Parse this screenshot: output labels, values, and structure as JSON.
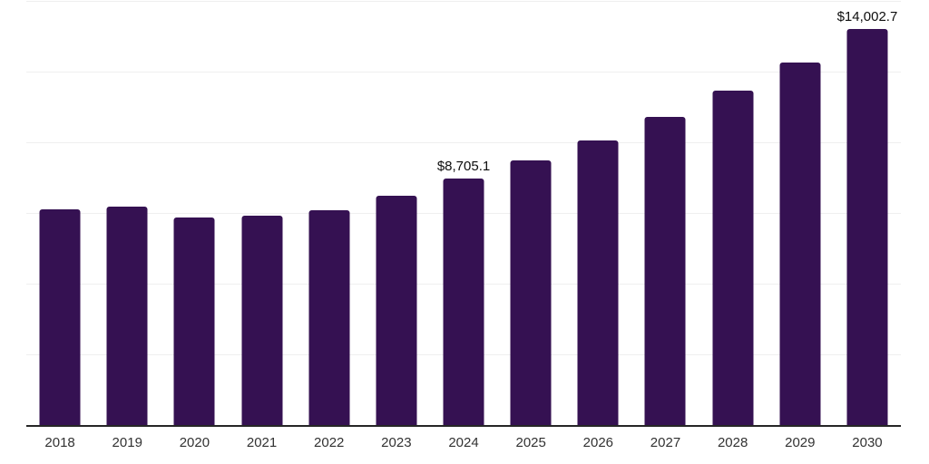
{
  "chart_data": {
    "type": "bar",
    "title": "",
    "xlabel": "",
    "ylabel": "",
    "categories": [
      "2018",
      "2019",
      "2020",
      "2021",
      "2022",
      "2023",
      "2024",
      "2025",
      "2026",
      "2027",
      "2028",
      "2029",
      "2030"
    ],
    "values": [
      7640,
      7730,
      7350,
      7410,
      7600,
      8100,
      8705.1,
      9350,
      10070,
      10900,
      11830,
      12820,
      14002.7
    ],
    "point_labels": [
      "",
      "",
      "",
      "",
      "",
      "",
      "$8,705.1",
      "",
      "",
      "",
      "",
      "",
      "$14,002.7"
    ],
    "ylim": [
      0,
      15000
    ],
    "grid_step": 2500,
    "grid": "horizontal-only",
    "y_axis_labels_visible": false,
    "legend_position": "none",
    "bar_color": "#351152",
    "gridline_color": "#efefef",
    "axis_line_color": "#262626",
    "tick_label_color": "#323232",
    "data_label_color": "#0d0d0d",
    "background_color": "#ffffff"
  }
}
